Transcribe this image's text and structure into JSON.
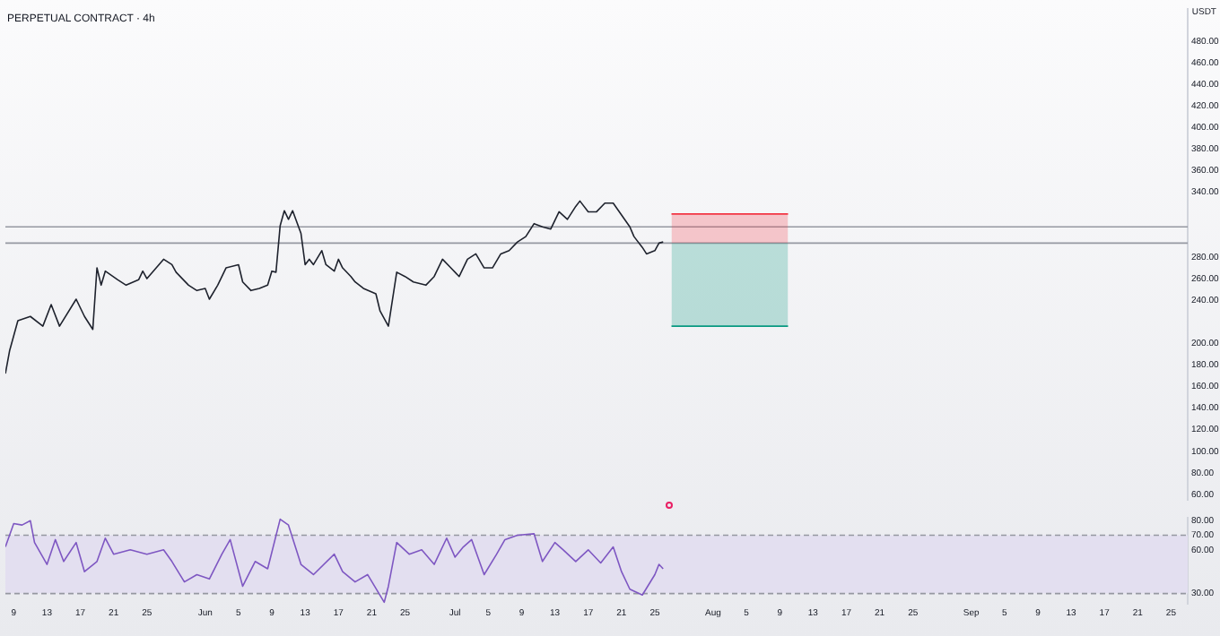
{
  "chart_data": [
    {
      "type": "line",
      "title": "PERPETUAL CONTRACT · 4h",
      "ylabel": "USDT",
      "x": [
        "--05-08",
        "--05-08T12:00",
        "--05-09T12:00",
        "--05-11",
        "--05-12T12:00",
        "--05-13T12:00",
        "--05-14T12:00",
        "--05-16T12:00",
        "--05-17T12:00",
        "--05-18T12:00",
        "--05-19",
        "--05-19T12:00",
        "--05-20",
        "--05-21T12:00",
        "--05-22T12:00",
        "--05-24",
        "--05-24T12:00",
        "--05-25",
        "--05-26",
        "--05-27",
        "--05-28",
        "--05-28T12:00",
        "--05-30",
        "--05-31",
        "--06-01",
        "--06-01T12:00",
        "--06-02T12:00",
        "--06-03T12:00",
        "--06-05",
        "--06-05T12:00",
        "--06-06T12:00",
        "--06-07T12:00",
        "--06-08T12:00",
        "--06-09",
        "--06-09T12:00",
        "--06-10",
        "--06-10T12:00",
        "--06-11",
        "--06-11T12:00",
        "--06-12T12:00",
        "--06-13",
        "--06-13T12:00",
        "--06-14",
        "--06-15",
        "--06-15T12:00",
        "--06-16T12:00",
        "--06-17",
        "--06-17T12:00",
        "--06-18T12:00",
        "--06-19",
        "--06-20",
        "--06-21T12:00",
        "--06-22",
        "--06-23",
        "--06-24",
        "--06-25",
        "--06-26",
        "--06-27T12:00",
        "--06-28T12:00",
        "--06-29T12:00",
        "--06-30T12:00",
        "--07-01T12:00",
        "--07-02T12:00",
        "--07-03T12:00",
        "--07-04T12:00",
        "--07-05T12:00",
        "--07-06T12:00",
        "--07-07T12:00",
        "--07-08T12:00",
        "--07-09T12:00",
        "--07-10T12:00",
        "--07-11T12:00",
        "--07-12T12:00",
        "--07-13T12:00",
        "--07-14T12:00",
        "--07-15T12:00",
        "--07-16",
        "--07-17",
        "--07-18",
        "--07-19",
        "--07-20",
        "--07-21",
        "--07-22",
        "--07-22T12:00",
        "--07-23T12:00",
        "--07-24",
        "--07-25",
        "--07-25T12:00",
        "--07-26"
      ],
      "series": [
        {
          "color": "#1e222d",
          "values": [
            172,
            193,
            221,
            225,
            216,
            236,
            216,
            241,
            225,
            213,
            270,
            254,
            267,
            259,
            254,
            259,
            267,
            260,
            269,
            278,
            273,
            266,
            254,
            249,
            251,
            241,
            254,
            270,
            273,
            257,
            249,
            251,
            254,
            267,
            266,
            309,
            323,
            315,
            323,
            302,
            273,
            278,
            273,
            286,
            273,
            267,
            278,
            270,
            262,
            257,
            251,
            246,
            230,
            216,
            266,
            262,
            257,
            254,
            262,
            278,
            270,
            262,
            278,
            283,
            270,
            270,
            283,
            286,
            294,
            299,
            311,
            308,
            306,
            322,
            315,
            327,
            332,
            322,
            322,
            330,
            330,
            319,
            308,
            299,
            289,
            283,
            286,
            293,
            294
          ]
        },
        {
          "type": "line",
          "color": "#f23645",
          "x": [
            "--07-27",
            "--08-10"
          ],
          "values": [
            320,
            320
          ],
          "lower": [
            293,
            293
          ],
          "upper": [
            320,
            320
          ]
        },
        {
          "type": "line",
          "color": "#089981",
          "x": [
            "--07-27",
            "--08-10"
          ],
          "values": [
            216,
            216
          ],
          "lower": [
            216,
            216
          ],
          "upper": [
            293,
            293
          ]
        }
      ],
      "ref_lines": [
        {
          "axis": "y",
          "value": 308,
          "color": "#9598a1"
        },
        {
          "axis": "y",
          "value": 293,
          "color": "#9598a1"
        }
      ],
      "xlim": [
        "--05-08",
        "--09-27"
      ],
      "ylim": [
        55,
        510
      ],
      "yticks": [
        {
          "value": 60,
          "label": "60.00"
        },
        {
          "value": 80,
          "label": "80.00"
        },
        {
          "value": 100,
          "label": "100.00"
        },
        {
          "value": 120,
          "label": "120.00"
        },
        {
          "value": 140,
          "label": "140.00"
        },
        {
          "value": 160,
          "label": "160.00"
        },
        {
          "value": 180,
          "label": "180.00"
        },
        {
          "value": 200,
          "label": "200.00"
        },
        {
          "value": 240,
          "label": "240.00"
        },
        {
          "value": 260,
          "label": "260.00"
        },
        {
          "value": 280,
          "label": "280.00"
        },
        {
          "value": 340,
          "label": "340.00"
        },
        {
          "value": 360,
          "label": "360.00"
        },
        {
          "value": 380,
          "label": "380.00"
        },
        {
          "value": 400,
          "label": "400.00"
        },
        {
          "value": 420,
          "label": "420.00"
        },
        {
          "value": 440,
          "label": "440.00"
        },
        {
          "value": 460,
          "label": "460.00"
        },
        {
          "value": 480,
          "label": "480.00"
        }
      ],
      "tick_labels": "y",
      "grid": false
    },
    {
      "type": "line",
      "x": [
        "--05-08",
        "--05-09",
        "--05-10",
        "--05-11",
        "--05-11T12:00",
        "--05-13",
        "--05-14",
        "--05-15",
        "--05-16T12:00",
        "--05-17T12:00",
        "--05-19",
        "--05-20",
        "--05-21",
        "--05-23",
        "--05-25",
        "--05-27",
        "--05-28",
        "--05-29T12:00",
        "--05-31",
        "--06-01T12:00",
        "--06-03",
        "--06-04",
        "--06-05T12:00",
        "--06-07",
        "--06-08T12:00",
        "--06-10",
        "--06-11",
        "--06-12T12:00",
        "--06-14",
        "--06-16T12:00",
        "--06-17T12:00",
        "--06-19",
        "--06-20T12:00",
        "--06-22T12:00",
        "--06-23",
        "--06-24",
        "--06-25T12:00",
        "--06-27",
        "--06-28T12:00",
        "--06-30",
        "--07-01",
        "--07-02",
        "--07-03",
        "--07-04T12:00",
        "--07-06",
        "--07-07",
        "--07-08T12:00",
        "--07-10T12:00",
        "--07-11T12:00",
        "--07-13",
        "--07-14",
        "--07-15T12:00",
        "--07-17",
        "--07-18T12:00",
        "--07-20",
        "--07-21",
        "--07-22",
        "--07-23T12:00",
        "--07-25",
        "--07-25T12:00",
        "--07-26"
      ],
      "series": [
        {
          "color": "#7e57c2",
          "values": [
            62,
            78,
            77,
            80,
            65,
            50,
            67,
            52,
            65,
            45,
            52,
            68,
            57,
            60,
            57,
            60,
            52,
            38,
            43,
            40,
            57,
            67,
            35,
            52,
            47,
            81,
            77,
            50,
            43,
            57,
            45,
            38,
            43,
            24,
            35,
            65,
            57,
            60,
            50,
            68,
            55,
            62,
            67,
            43,
            57,
            67,
            70,
            71,
            52,
            65,
            60,
            52,
            60,
            51,
            62,
            45,
            33,
            29,
            43,
            50,
            47
          ]
        }
      ],
      "ref_lines": [
        {
          "axis": "y",
          "value": 70,
          "color": "#9598a1",
          "line_style": "dashed"
        },
        {
          "axis": "y",
          "value": 30,
          "color": "#9598a1",
          "line_style": "dashed"
        }
      ],
      "bands": [
        {
          "axis": "y",
          "from": 30,
          "to": 70,
          "color": "#e3dff0"
        }
      ],
      "xlim": [
        "--05-08",
        "--09-27"
      ],
      "xticks": [
        {
          "value": "--05-09",
          "label": "9"
        },
        {
          "value": "--05-13",
          "label": "13"
        },
        {
          "value": "--05-17",
          "label": "17"
        },
        {
          "value": "--05-21",
          "label": "21"
        },
        {
          "value": "--05-25",
          "label": "25"
        },
        {
          "value": "--06-01",
          "label": "Jun"
        },
        {
          "value": "--06-05",
          "label": "5"
        },
        {
          "value": "--06-09",
          "label": "9"
        },
        {
          "value": "--06-13",
          "label": "13"
        },
        {
          "value": "--06-17",
          "label": "17"
        },
        {
          "value": "--06-21",
          "label": "21"
        },
        {
          "value": "--06-25",
          "label": "25"
        },
        {
          "value": "--07-01",
          "label": "Jul"
        },
        {
          "value": "--07-05",
          "label": "5"
        },
        {
          "value": "--07-09",
          "label": "9"
        },
        {
          "value": "--07-13",
          "label": "13"
        },
        {
          "value": "--07-17",
          "label": "17"
        },
        {
          "value": "--07-21",
          "label": "21"
        },
        {
          "value": "--07-25",
          "label": "25"
        },
        {
          "value": "--08-01",
          "label": "Aug"
        },
        {
          "value": "--08-05",
          "label": "5"
        },
        {
          "value": "--08-09",
          "label": "9"
        },
        {
          "value": "--08-13",
          "label": "13"
        },
        {
          "value": "--08-17",
          "label": "17"
        },
        {
          "value": "--08-21",
          "label": "21"
        },
        {
          "value": "--08-25",
          "label": "25"
        },
        {
          "value": "--09-01",
          "label": "Sep"
        },
        {
          "value": "--09-05",
          "label": "5"
        },
        {
          "value": "--09-09",
          "label": "9"
        },
        {
          "value": "--09-13",
          "label": "13"
        },
        {
          "value": "--09-17",
          "label": "17"
        },
        {
          "value": "--09-21",
          "label": "21"
        },
        {
          "value": "--09-25",
          "label": "25"
        }
      ],
      "ylim": [
        23,
        82
      ],
      "yticks": [
        {
          "value": 30,
          "label": "30.00"
        },
        {
          "value": 60,
          "label": "60.00"
        },
        {
          "value": 70,
          "label": "70.00"
        },
        {
          "value": 80,
          "label": "80.00"
        }
      ],
      "grid": false
    }
  ]
}
